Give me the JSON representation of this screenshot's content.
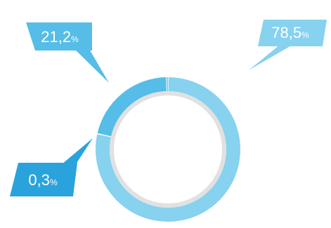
{
  "chart_data": {
    "type": "pie",
    "style": "donut",
    "slices": [
      {
        "value": 78.5,
        "label": "78,5",
        "unit": "%",
        "color": "#86D2EF"
      },
      {
        "value": 21.2,
        "label": "21,2",
        "unit": "%",
        "color": "#55BDE7"
      },
      {
        "value": 0.3,
        "label": "0,3",
        "unit": "%",
        "color": "#2AA3DC"
      }
    ],
    "inner_ring_color": "#E1E1E1",
    "title": "",
    "legend": "none"
  }
}
